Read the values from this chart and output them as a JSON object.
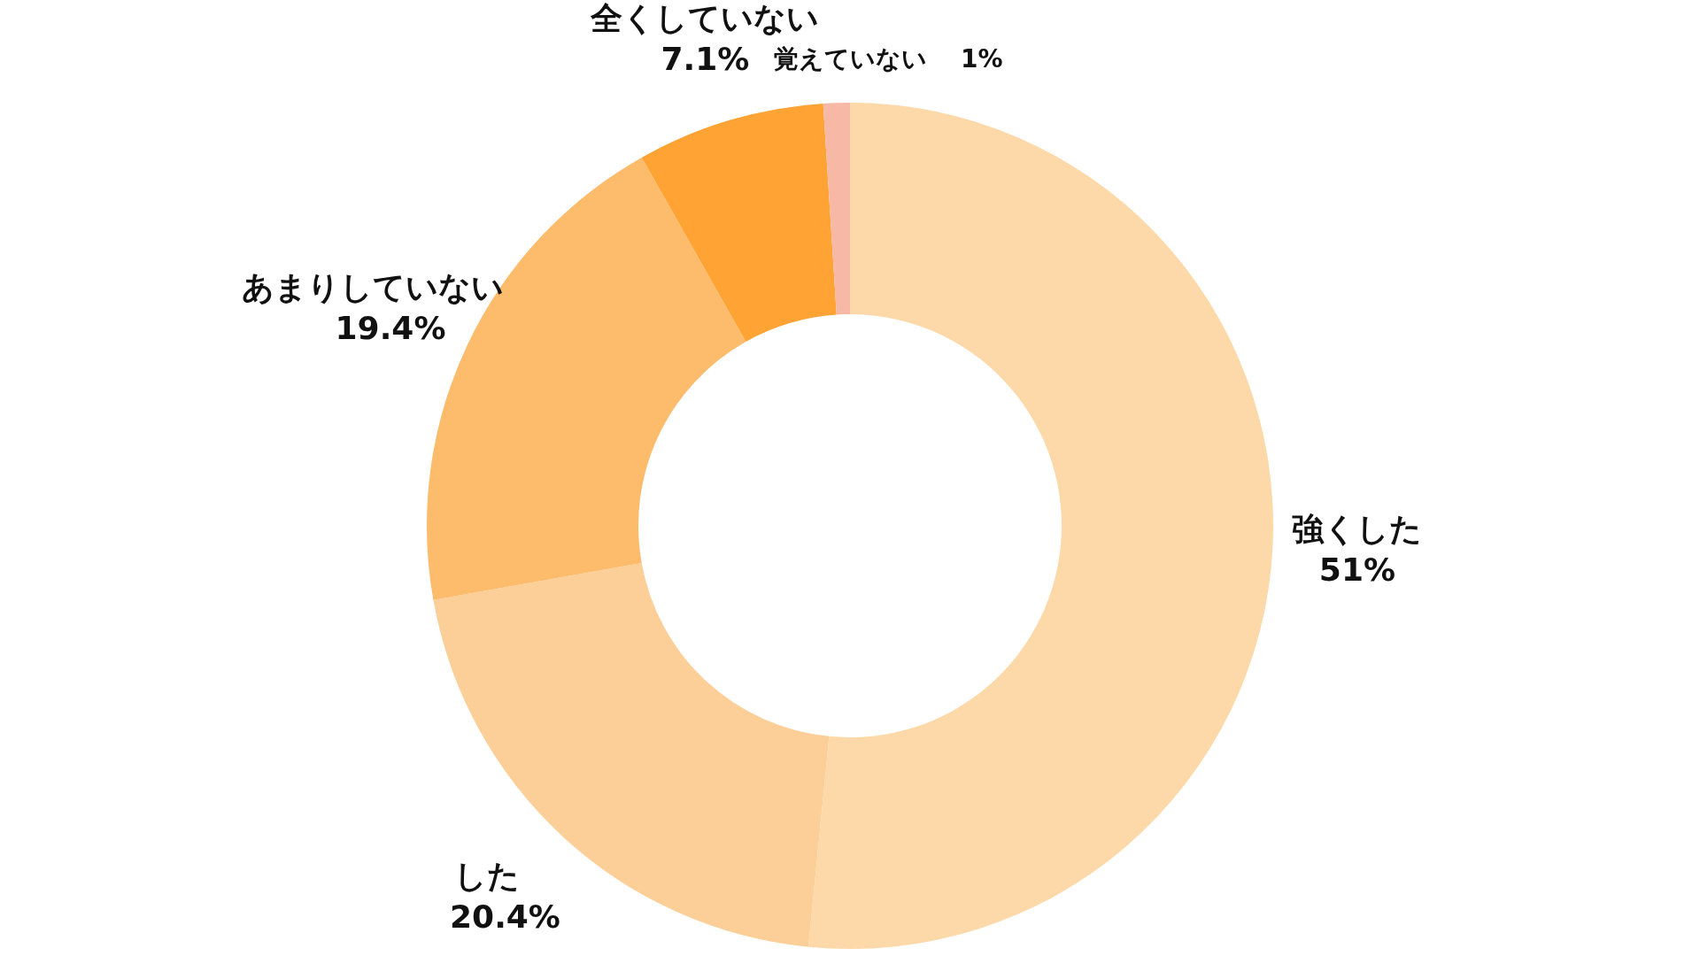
{
  "chart_data": {
    "type": "donut",
    "categories": [
      "強くした",
      "した",
      "あまりしていない",
      "全くしていない",
      "覚えていない"
    ],
    "values": [
      51,
      20.4,
      19.4,
      7.1,
      1
    ],
    "value_labels": [
      "51%",
      "20.4%",
      "19.4%",
      "7.1%",
      "1%"
    ],
    "colors": [
      "#fdd9a9",
      "#fdcf98",
      "#fdbb6c",
      "#ffa334",
      "#f7b9a5"
    ]
  }
}
